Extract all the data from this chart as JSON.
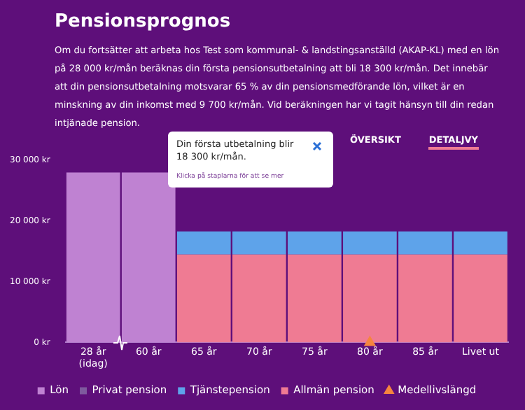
{
  "chart_data": {
    "type": "bar",
    "title": "Pensionsprognos",
    "subtitle": "Om du fortsätter att arbeta hos Test som kommunal- & landstingsanställd (AKAP-KL) med en lön på 28 000 kr/mån beräknas din första pensionsutbetalning att bli 18 300 kr/mån. Det innebär att din pensionsutbetalning motsvarar 65 % av din pensionsmedförande lön, vilket är en minskning av din inkomst med 9 700 kr/mån. Vid beräkningen har vi tagit hänsyn till din redan intjänade pension.",
    "categories": [
      "28 år (idag)",
      "60 år",
      "65 år",
      "70 år",
      "75 år",
      "80 år",
      "85 år",
      "Livet ut"
    ],
    "series": [
      {
        "name": "Allmän pension",
        "color": "#ef7b93",
        "values": [
          null,
          null,
          14500,
          14500,
          14500,
          14500,
          14500,
          14500
        ]
      },
      {
        "name": "Tjänstepension",
        "color": "#5ea3ea",
        "values": [
          null,
          null,
          3800,
          3800,
          3800,
          3800,
          3800,
          3800
        ]
      },
      {
        "name": "Privat pension",
        "color": "#7e5a9e",
        "values": [
          null,
          null,
          null,
          null,
          null,
          null,
          null,
          null
        ]
      },
      {
        "name": "Lön",
        "color": "#bf82d2",
        "values": [
          28000,
          28000,
          null,
          null,
          null,
          null,
          null,
          null
        ]
      },
      {
        "name": "Medellivslängd",
        "type": "scatter",
        "color": "#f5853f",
        "x": [
          "80 år"
        ],
        "values": [
          0
        ],
        "marker": "triangle"
      }
    ],
    "stacked": true,
    "ylim": [
      0,
      30000
    ],
    "yticks": [
      {
        "value": 0,
        "label": "0 kr"
      },
      {
        "value": 10000,
        "label": "10 000 kr"
      },
      {
        "value": 20000,
        "label": "20 000 kr"
      },
      {
        "value": 30000,
        "label": "30 000 kr"
      }
    ],
    "grid": false,
    "legend": "bottom",
    "annotations": [
      "ÖVERSIKT",
      "DETALJVY",
      "Din första utbetalning blir 18 300 kr/mån.",
      "Klicka på staplarna för att se mer"
    ]
  }
}
